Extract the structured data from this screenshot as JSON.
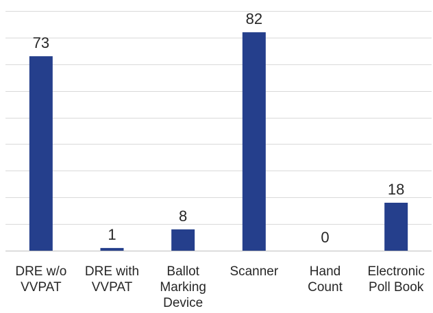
{
  "chart_data": {
    "type": "bar",
    "categories": [
      [
        "DRE w/o",
        "VVPAT"
      ],
      [
        "DRE with",
        "VVPAT"
      ],
      [
        "Ballot",
        "Marking",
        "Device"
      ],
      [
        "Scanner"
      ],
      [
        "Hand",
        "Count"
      ],
      [
        "Electronic",
        "Poll Book"
      ]
    ],
    "values": [
      73,
      1,
      8,
      82,
      0,
      18
    ],
    "value_labels": [
      "73",
      "1",
      "8",
      "82",
      "0",
      "18"
    ],
    "ylim": [
      0,
      90
    ],
    "grid": true,
    "bar_color": "#253f8c"
  }
}
